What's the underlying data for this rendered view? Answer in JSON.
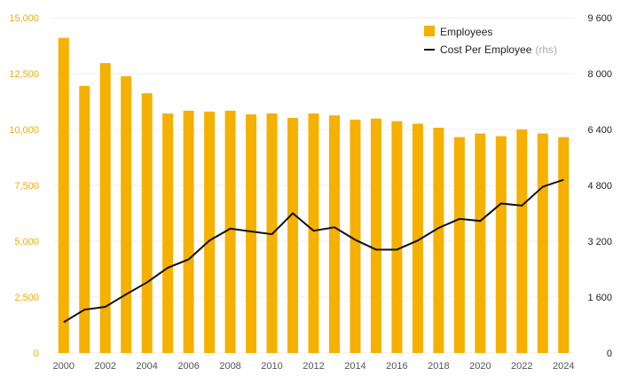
{
  "chart_data": {
    "type": "bar+line",
    "x": [
      2000,
      2001,
      2002,
      2003,
      2004,
      2005,
      2006,
      2007,
      2008,
      2009,
      2010,
      2011,
      2012,
      2013,
      2014,
      2015,
      2016,
      2017,
      2018,
      2019,
      2020,
      2021,
      2022,
      2023,
      2024
    ],
    "x_tick_labels": [
      "2000",
      "2002",
      "2004",
      "2006",
      "2008",
      "2010",
      "2012",
      "2014",
      "2016",
      "2018",
      "2020",
      "2022",
      "2024"
    ],
    "series": [
      {
        "name": "Employees",
        "type": "bar",
        "axis": "left",
        "color": "#f5b000",
        "values": [
          14100,
          11950,
          12970,
          12380,
          11620,
          10720,
          10840,
          10800,
          10840,
          10680,
          10720,
          10520,
          10720,
          10630,
          10440,
          10490,
          10370,
          10260,
          10080,
          9660,
          9820,
          9700,
          10000,
          9820,
          9660
        ]
      },
      {
        "name": "Cost Per Employee",
        "suffix": "(rhs)",
        "type": "line",
        "axis": "right",
        "color": "#111111",
        "values": [
          880,
          1240,
          1320,
          1680,
          2020,
          2440,
          2680,
          3220,
          3560,
          3480,
          3400,
          4000,
          3500,
          3600,
          3240,
          2960,
          2960,
          3220,
          3580,
          3840,
          3780,
          4280,
          4220,
          4760,
          4960
        ]
      }
    ],
    "y_left": {
      "min": 0,
      "max": 15000,
      "ticks": [
        0,
        2500,
        5000,
        7500,
        10000,
        12500,
        15000
      ],
      "tick_labels": [
        "0",
        "2,500",
        "5,000",
        "7,500",
        "10,000",
        "12,500",
        "15,000"
      ],
      "color": "#f0ab00"
    },
    "y_right": {
      "min": 0,
      "max": 9600,
      "ticks": [
        0,
        1600,
        3200,
        4800,
        6400,
        8000,
        9600
      ],
      "tick_labels": [
        "0",
        "1 600",
        "3 200",
        "4 800",
        "6 400",
        "8 000",
        "9 600"
      ]
    },
    "legend": {
      "position": "top-right",
      "items": [
        {
          "label": "Employees"
        },
        {
          "label": "Cost Per Employee",
          "suffix": "(rhs)"
        }
      ]
    },
    "grid": true,
    "title": "",
    "xlabel": "",
    "ylabel": ""
  }
}
